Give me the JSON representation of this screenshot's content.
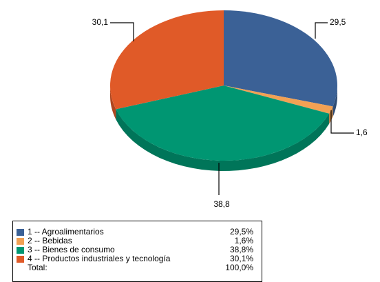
{
  "chart_data": {
    "type": "pie",
    "categories": [
      "1 -- Agroalimentarios",
      "2 -- Bebidas",
      "3 -- Bienes de consumo",
      "4 -- Productos industriales y tecnología"
    ],
    "values": [
      29.5,
      1.6,
      38.8,
      30.1
    ],
    "value_labels": [
      "29,5",
      "1,6",
      "38,8",
      "30,1"
    ],
    "legend_value_labels": [
      "29,5%",
      "1,6%",
      "38,8%",
      "30,1%"
    ],
    "colors": [
      "#3b6196",
      "#f2a154",
      "#009672",
      "#e05a28"
    ],
    "total": {
      "label": "Total:",
      "value": 100,
      "value_label": "100,0%"
    }
  }
}
